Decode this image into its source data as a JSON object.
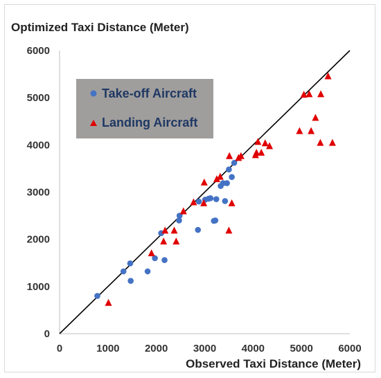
{
  "chart_data": {
    "type": "scatter",
    "title": "",
    "ylabel": "Optimized Taxi Distance (Meter)",
    "xlabel": "Observed Taxi Distance (Meter)",
    "xlim": [
      0,
      6000
    ],
    "ylim": [
      0,
      6000
    ],
    "x_ticks": [
      0,
      1000,
      2000,
      3000,
      4000,
      5000,
      6000
    ],
    "y_ticks": [
      0,
      1000,
      2000,
      3000,
      4000,
      5000,
      6000
    ],
    "grid": false,
    "legend_position": "upper-left",
    "reference_line": {
      "x": [
        0,
        6000
      ],
      "y": [
        0,
        6000
      ],
      "color": "#000000"
    },
    "series": [
      {
        "name": "Take-off Aircraft",
        "marker": "circle",
        "color": "#4472c4",
        "points": [
          [
            780,
            800
          ],
          [
            1320,
            1320
          ],
          [
            1460,
            1490
          ],
          [
            1470,
            1120
          ],
          [
            1820,
            1320
          ],
          [
            1970,
            1600
          ],
          [
            2100,
            2130
          ],
          [
            2170,
            1560
          ],
          [
            2470,
            2400
          ],
          [
            2480,
            2500
          ],
          [
            2860,
            2200
          ],
          [
            2880,
            2800
          ],
          [
            3010,
            2840
          ],
          [
            3080,
            2860
          ],
          [
            3120,
            2870
          ],
          [
            3190,
            2390
          ],
          [
            3220,
            2400
          ],
          [
            3240,
            2850
          ],
          [
            3330,
            3130
          ],
          [
            3380,
            3190
          ],
          [
            3420,
            2810
          ],
          [
            3460,
            3190
          ],
          [
            3500,
            3480
          ],
          [
            3560,
            3320
          ],
          [
            3610,
            3620
          ]
        ]
      },
      {
        "name": "Landing Aircraft",
        "marker": "triangle",
        "color": "#e00000",
        "points": [
          [
            1010,
            650
          ],
          [
            1900,
            1700
          ],
          [
            2150,
            1950
          ],
          [
            2180,
            2180
          ],
          [
            2370,
            2180
          ],
          [
            2410,
            1950
          ],
          [
            2560,
            2590
          ],
          [
            2770,
            2780
          ],
          [
            2980,
            2760
          ],
          [
            2990,
            3200
          ],
          [
            3250,
            3270
          ],
          [
            3320,
            3320
          ],
          [
            3500,
            2180
          ],
          [
            3510,
            3760
          ],
          [
            3560,
            2760
          ],
          [
            3700,
            3720
          ],
          [
            3750,
            3760
          ],
          [
            4050,
            3780
          ],
          [
            4070,
            3830
          ],
          [
            4100,
            4060
          ],
          [
            4170,
            3830
          ],
          [
            4250,
            4030
          ],
          [
            4340,
            3970
          ],
          [
            4960,
            4290
          ],
          [
            5050,
            5060
          ],
          [
            5160,
            5070
          ],
          [
            5200,
            4290
          ],
          [
            5290,
            4570
          ],
          [
            5390,
            4040
          ],
          [
            5400,
            5070
          ],
          [
            5550,
            5450
          ],
          [
            5640,
            4040
          ]
        ]
      }
    ]
  }
}
